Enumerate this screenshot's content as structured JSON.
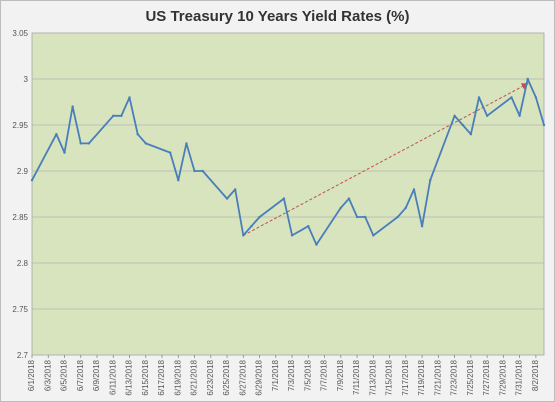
{
  "chart_data": {
    "type": "line",
    "title": "US Treasury 10 Years Yield Rates (%)",
    "xlabel": "",
    "ylabel": "",
    "ylim": [
      2.7,
      3.05
    ],
    "y_ticks": [
      "2.7",
      "2.75",
      "2.8",
      "2.85",
      "2.9",
      "2.95",
      "3",
      "3.05"
    ],
    "x_tick_labels": [
      "6/1/2018",
      "6/3/2018",
      "6/5/2018",
      "6/7/2018",
      "6/9/2018",
      "6/11/2018",
      "6/13/2018",
      "6/15/2018",
      "6/17/2018",
      "6/19/2018",
      "6/21/2018",
      "6/23/2018",
      "6/25/2018",
      "6/27/2018",
      "6/29/2018",
      "7/1/2018",
      "7/3/2018",
      "7/5/2018",
      "7/7/2018",
      "7/9/2018",
      "7/11/2018",
      "7/13/2018",
      "7/15/2018",
      "7/17/2018",
      "7/19/2018",
      "7/21/2018",
      "7/23/2018",
      "7/25/2018",
      "7/27/2018",
      "7/29/2018",
      "7/31/2018",
      "8/2/2018"
    ],
    "grid": true,
    "plot_background": "#d7e4bd",
    "series": [
      {
        "color": "#4a7ebb",
        "x": [
          "6/1/2018",
          "6/4/2018",
          "6/5/2018",
          "6/6/2018",
          "6/7/2018",
          "6/8/2018",
          "6/11/2018",
          "6/12/2018",
          "6/13/2018",
          "6/14/2018",
          "6/15/2018",
          "6/18/2018",
          "6/19/2018",
          "6/20/2018",
          "6/21/2018",
          "6/22/2018",
          "6/25/2018",
          "6/26/2018",
          "6/27/2018",
          "6/28/2018",
          "6/29/2018",
          "7/2/2018",
          "7/3/2018",
          "7/5/2018",
          "7/6/2018",
          "7/9/2018",
          "7/10/2018",
          "7/11/2018",
          "7/12/2018",
          "7/13/2018",
          "7/16/2018",
          "7/17/2018",
          "7/18/2018",
          "7/19/2018",
          "7/20/2018",
          "7/23/2018",
          "7/24/2018",
          "7/25/2018",
          "7/26/2018",
          "7/27/2018",
          "7/30/2018",
          "7/31/2018",
          "8/1/2018",
          "8/2/2018",
          "8/3/2018"
        ],
        "values": [
          2.89,
          2.94,
          2.92,
          2.97,
          2.93,
          2.93,
          2.96,
          2.96,
          2.98,
          2.94,
          2.93,
          2.92,
          2.89,
          2.93,
          2.9,
          2.9,
          2.87,
          2.88,
          2.83,
          2.84,
          2.85,
          2.87,
          2.83,
          2.84,
          2.82,
          2.86,
          2.87,
          2.85,
          2.85,
          2.83,
          2.85,
          2.86,
          2.88,
          2.84,
          2.89,
          2.96,
          2.95,
          2.94,
          2.98,
          2.96,
          2.98,
          2.96,
          3.0,
          2.98,
          2.95
        ]
      }
    ],
    "trendline": {
      "color": "#c0504d",
      "from": {
        "x": "6/27/2018",
        "y": 2.83
      },
      "to": {
        "x": "8/1/2018",
        "y": 2.995
      }
    }
  }
}
